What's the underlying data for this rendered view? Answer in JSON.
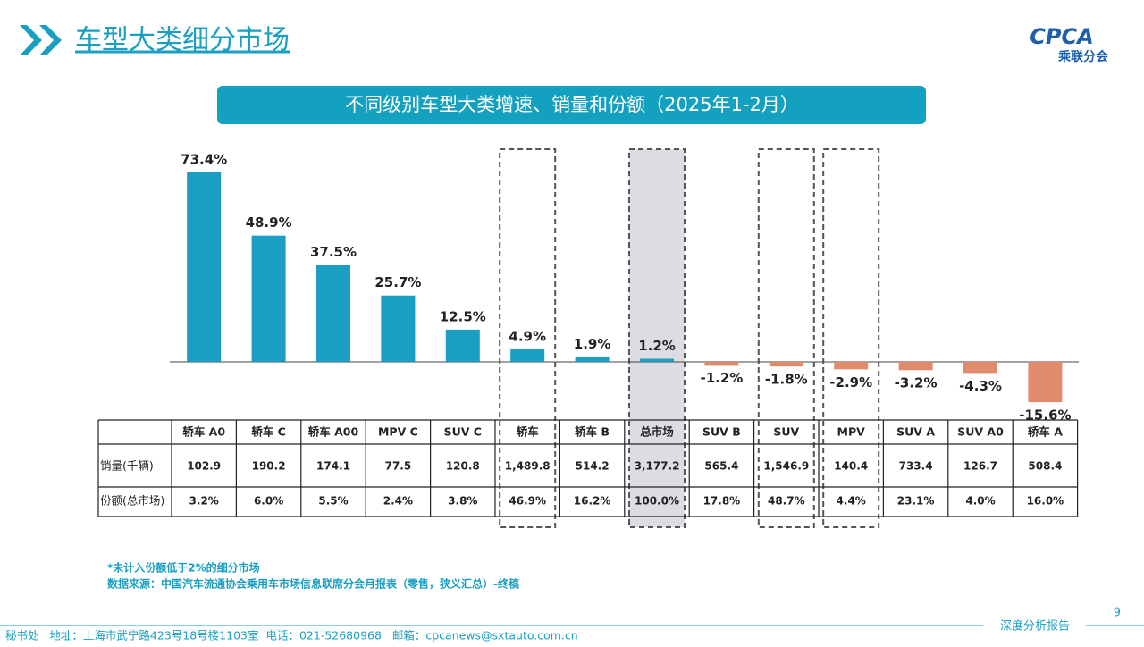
{
  "header": {
    "title": "车型大类细分市场",
    "logo": "CPCA",
    "logo_sub": "乘联分会"
  },
  "chart_data": {
    "type": "bar",
    "title": "不同级别车型大类增速、销量和份额（2025年1-2月）",
    "categories": [
      "轿车 A0",
      "轿车 C",
      "轿车 A00",
      "MPV C",
      "SUV C",
      "轿车",
      "轿车 B",
      "总市场",
      "SUV B",
      "SUV",
      "MPV",
      "SUV A",
      "SUV A0",
      "轿车 A"
    ],
    "values": [
      73.4,
      48.9,
      37.5,
      25.7,
      12.5,
      4.9,
      1.9,
      1.2,
      -1.2,
      -1.8,
      -2.9,
      -3.2,
      -4.3,
      -15.6
    ],
    "value_labels": [
      "73.4%",
      "48.9%",
      "37.5%",
      "25.7%",
      "12.5%",
      "4.9%",
      "1.9%",
      "1.2%",
      "-1.2%",
      "-1.8%",
      "-2.9%",
      "-3.2%",
      "-4.3%",
      "-15.6%"
    ],
    "color": "#1a9fc2",
    "negative_color": "#e08b6b"
  },
  "table": {
    "rows": [
      [
        "销量(千辆)",
        "102.9",
        "190.2",
        "174.1",
        "77.5",
        "120.8",
        "1,489.8",
        "514.2",
        "3,177.2",
        "565.4",
        "1,546.9",
        "140.4",
        "733.4",
        "126.7",
        "508.4"
      ],
      [
        "份额(总市场)",
        "3.2%",
        "6.0%",
        "5.5%",
        "2.4%",
        "3.8%",
        "46.9%",
        "16.2%",
        "100.0%",
        "17.8%",
        "48.7%",
        "4.4%",
        "23.1%",
        "4.0%",
        "16.0%"
      ]
    ]
  },
  "notes": [
    "*未计入份额低于2%的细分市场",
    "数据来源：中国汽车流通协会乘用车市场信息联席分会月报表（零售，狭义汇总）-终稿"
  ],
  "footer": {
    "address": "秘书处   地址：上海市武宁路423号18号楼1103室  电话：021-52680968   邮箱：cpcanews@sxtauto.com.cn",
    "report": "深度分析报告",
    "page": "9"
  }
}
